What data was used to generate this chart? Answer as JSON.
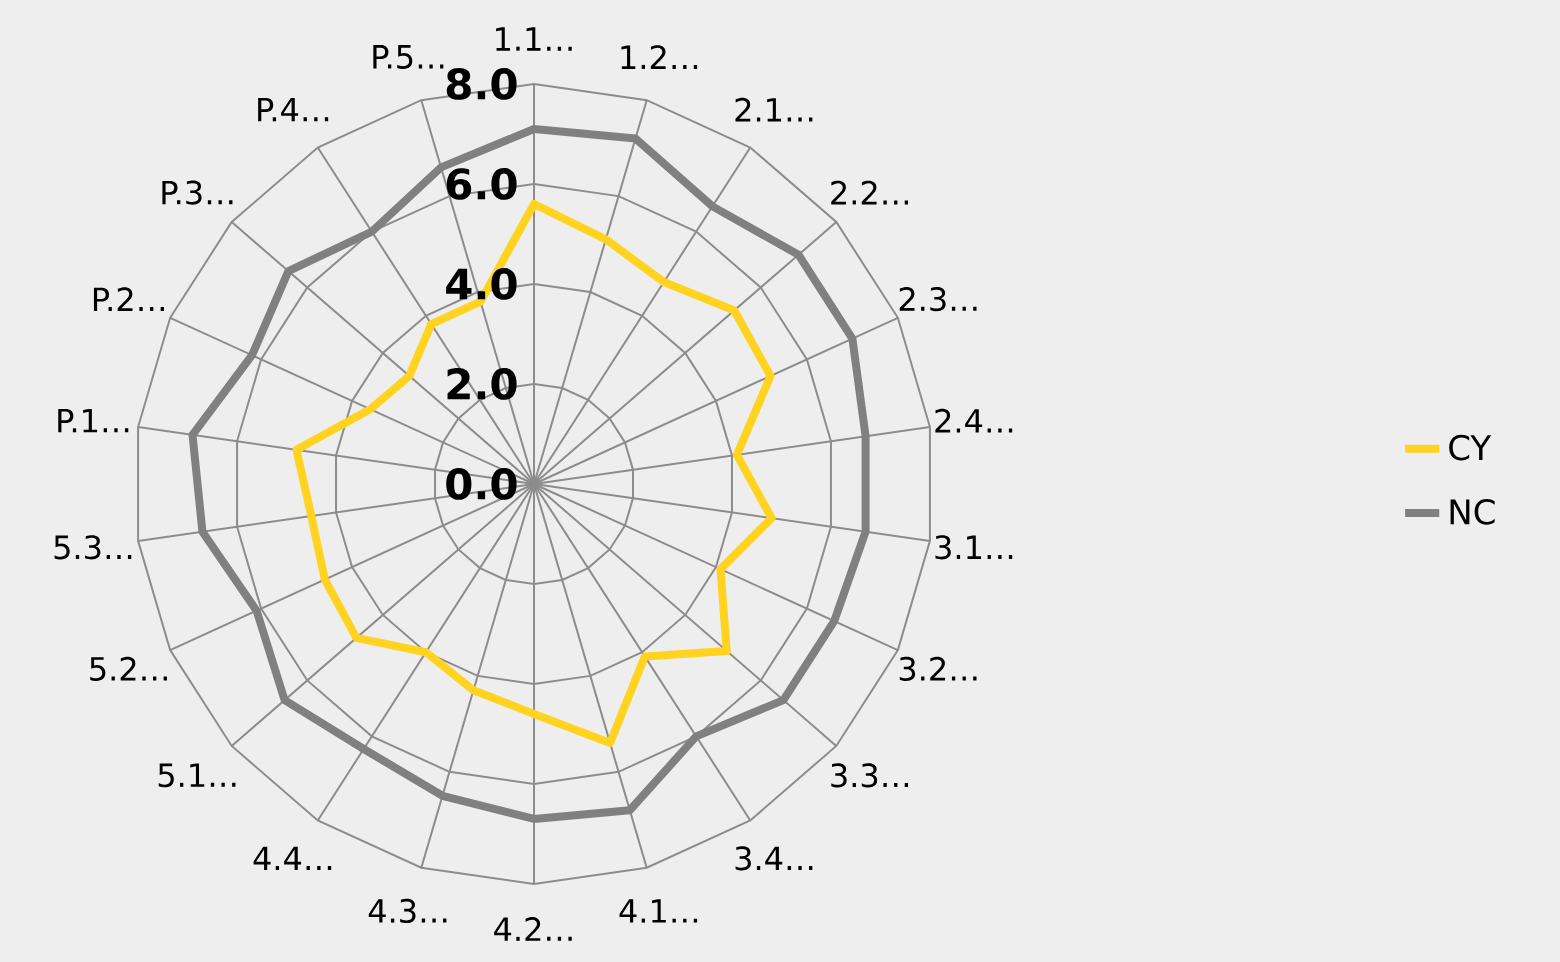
{
  "chart_data": {
    "type": "radar",
    "categories": [
      "1.1…",
      "1.2…",
      "2.1…",
      "2.2…",
      "2.3…",
      "2.4…",
      "3.1…",
      "3.2…",
      "3.3…",
      "3.4…",
      "4.1…",
      "4.2…",
      "4.3…",
      "4.4…",
      "5.1…",
      "5.2…",
      "5.3…",
      "P.1…",
      "P.2…",
      "P.3…",
      "P.4…",
      "P.5…"
    ],
    "series": [
      {
        "name": "CY",
        "color": "#ffd320",
        "values": [
          5.6,
          5.1,
          4.8,
          5.3,
          5.2,
          4.1,
          4.8,
          4.1,
          5.1,
          4.1,
          5.4,
          4.6,
          4.3,
          4.0,
          4.7,
          4.6,
          4.5,
          4.8,
          3.6,
          3.3,
          3.8,
          3.8
        ]
      },
      {
        "name": "NC",
        "color": "#808080",
        "values": [
          7.1,
          7.2,
          6.6,
          7.0,
          7.0,
          6.7,
          6.7,
          6.6,
          6.6,
          6.0,
          6.8,
          6.7,
          6.5,
          6.3,
          6.6,
          6.1,
          6.7,
          6.9,
          6.2,
          6.5,
          6.0,
          6.6
        ]
      }
    ],
    "ylim": [
      0,
      8
    ],
    "yticks": [
      {
        "value": 0,
        "label": "0.0"
      },
      {
        "value": 2,
        "label": "2.0"
      },
      {
        "value": 4,
        "label": "4.0"
      },
      {
        "value": 6,
        "label": "6.0"
      },
      {
        "value": 8,
        "label": "8.0"
      }
    ],
    "grid": true,
    "legend": "right"
  }
}
